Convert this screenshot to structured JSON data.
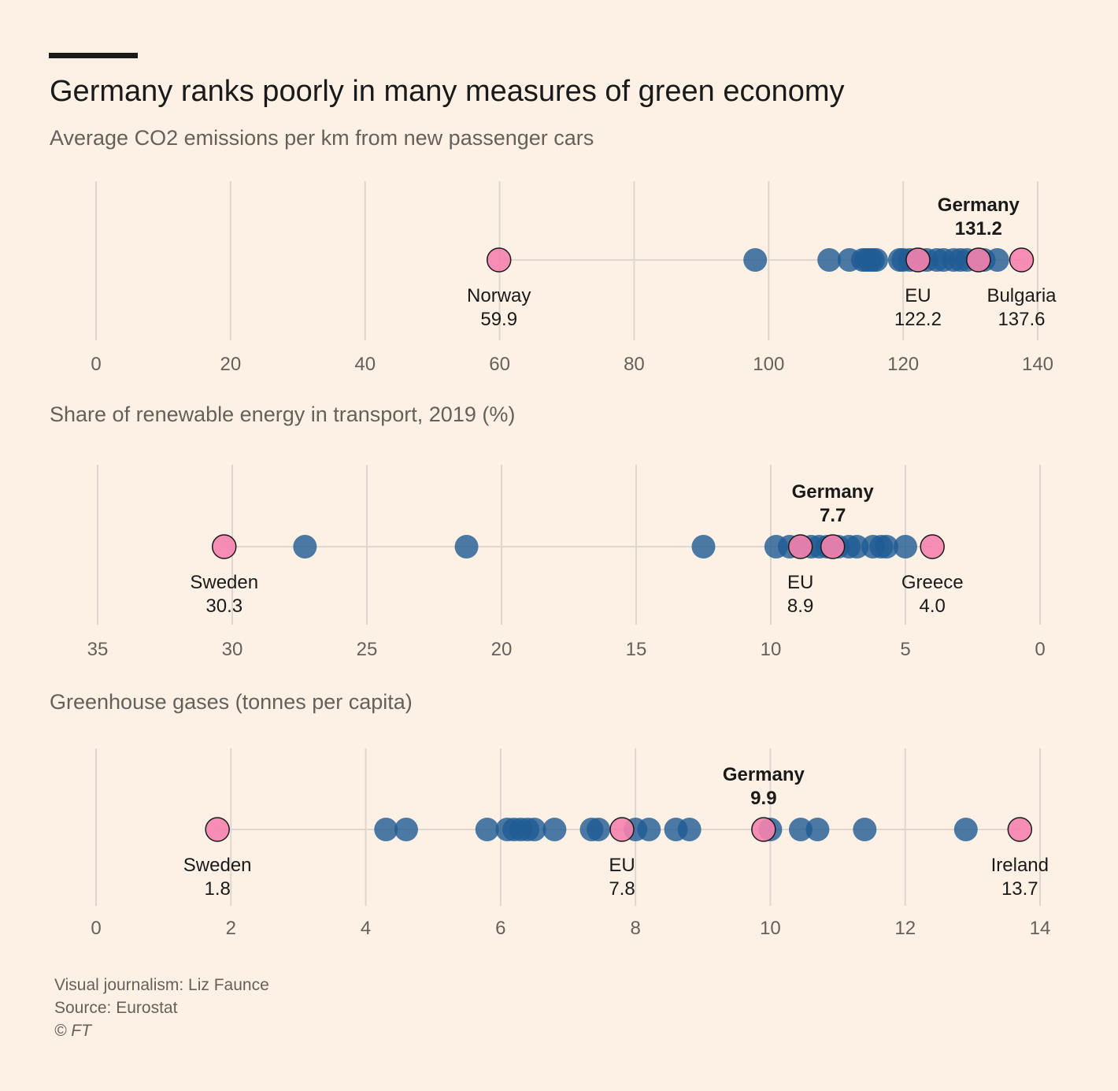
{
  "title": "Germany ranks poorly in many measures of green economy",
  "colors": {
    "background": "#fdf1e5",
    "country": "#1f5b94",
    "highlight": "#f582ae",
    "grid": "#ddd7d0",
    "axis_text": "#66605b"
  },
  "footer": {
    "credit": "Visual journalism: Liz Faunce",
    "source": "Source: Eurostat",
    "copyright": "© FT"
  },
  "chart_data": [
    {
      "type": "dot-strip",
      "title": "Average CO2 emissions per km from new passenger cars",
      "xlim": [
        0,
        140
      ],
      "reversed": false,
      "ticks": [
        0,
        20,
        40,
        60,
        80,
        100,
        120,
        140
      ],
      "values": [
        98,
        109,
        112,
        114,
        114.5,
        115,
        115.5,
        116,
        119.5,
        120,
        121,
        122.5,
        123.5,
        125,
        126,
        127.5,
        128.5,
        129.5,
        131,
        132,
        134
      ],
      "highlights": [
        {
          "name": "Norway",
          "value": 59.9,
          "label": "59.9",
          "label_pos": "below",
          "bold": false
        },
        {
          "name": "EU",
          "value": 122.2,
          "label": "122.2",
          "label_pos": "below",
          "bold": false
        },
        {
          "name": "Germany",
          "value": 131.2,
          "label": "131.2",
          "label_pos": "above",
          "bold": true
        },
        {
          "name": "Bulgaria",
          "value": 137.6,
          "label": "137.6",
          "label_pos": "below",
          "bold": false
        }
      ]
    },
    {
      "type": "dot-strip",
      "title": "Share of renewable energy in transport, 2019 (%)",
      "xlim": [
        0,
        35
      ],
      "reversed": true,
      "ticks": [
        35,
        30,
        25,
        20,
        15,
        10,
        5,
        0
      ],
      "values": [
        27.3,
        21.3,
        12.5,
        9.8,
        9.3,
        8.9,
        8.5,
        8.2,
        7.9,
        7.5,
        7.1,
        6.8,
        6.2,
        5.9,
        5.7,
        5.0
      ],
      "highlights": [
        {
          "name": "Sweden",
          "value": 30.3,
          "label": "30.3",
          "label_pos": "below",
          "bold": false
        },
        {
          "name": "EU",
          "value": 8.9,
          "label": "8.9",
          "label_pos": "below",
          "bold": false
        },
        {
          "name": "Germany",
          "value": 7.7,
          "label": "7.7",
          "label_pos": "above",
          "bold": true
        },
        {
          "name": "Greece",
          "value": 4.0,
          "label": "4.0",
          "label_pos": "below",
          "bold": false
        }
      ]
    },
    {
      "type": "dot-strip",
      "title": "Greenhouse gases (tonnes per capita)",
      "xlim": [
        0,
        14
      ],
      "reversed": false,
      "ticks": [
        0,
        2,
        4,
        6,
        8,
        10,
        12,
        14
      ],
      "values": [
        4.3,
        4.6,
        5.8,
        6.1,
        6.2,
        6.3,
        6.4,
        6.5,
        6.8,
        7.35,
        7.45,
        8.0,
        8.2,
        8.6,
        8.8,
        10.0,
        10.45,
        10.7,
        11.4,
        12.9
      ],
      "highlights": [
        {
          "name": "Sweden",
          "value": 1.8,
          "label": "1.8",
          "label_pos": "below",
          "bold": false
        },
        {
          "name": "EU",
          "value": 7.8,
          "label": "7.8",
          "label_pos": "below",
          "bold": false
        },
        {
          "name": "Germany",
          "value": 9.9,
          "label": "9.9",
          "label_pos": "above",
          "bold": true
        },
        {
          "name": "Ireland",
          "value": 13.7,
          "label": "13.7",
          "label_pos": "below",
          "bold": false
        }
      ]
    }
  ]
}
